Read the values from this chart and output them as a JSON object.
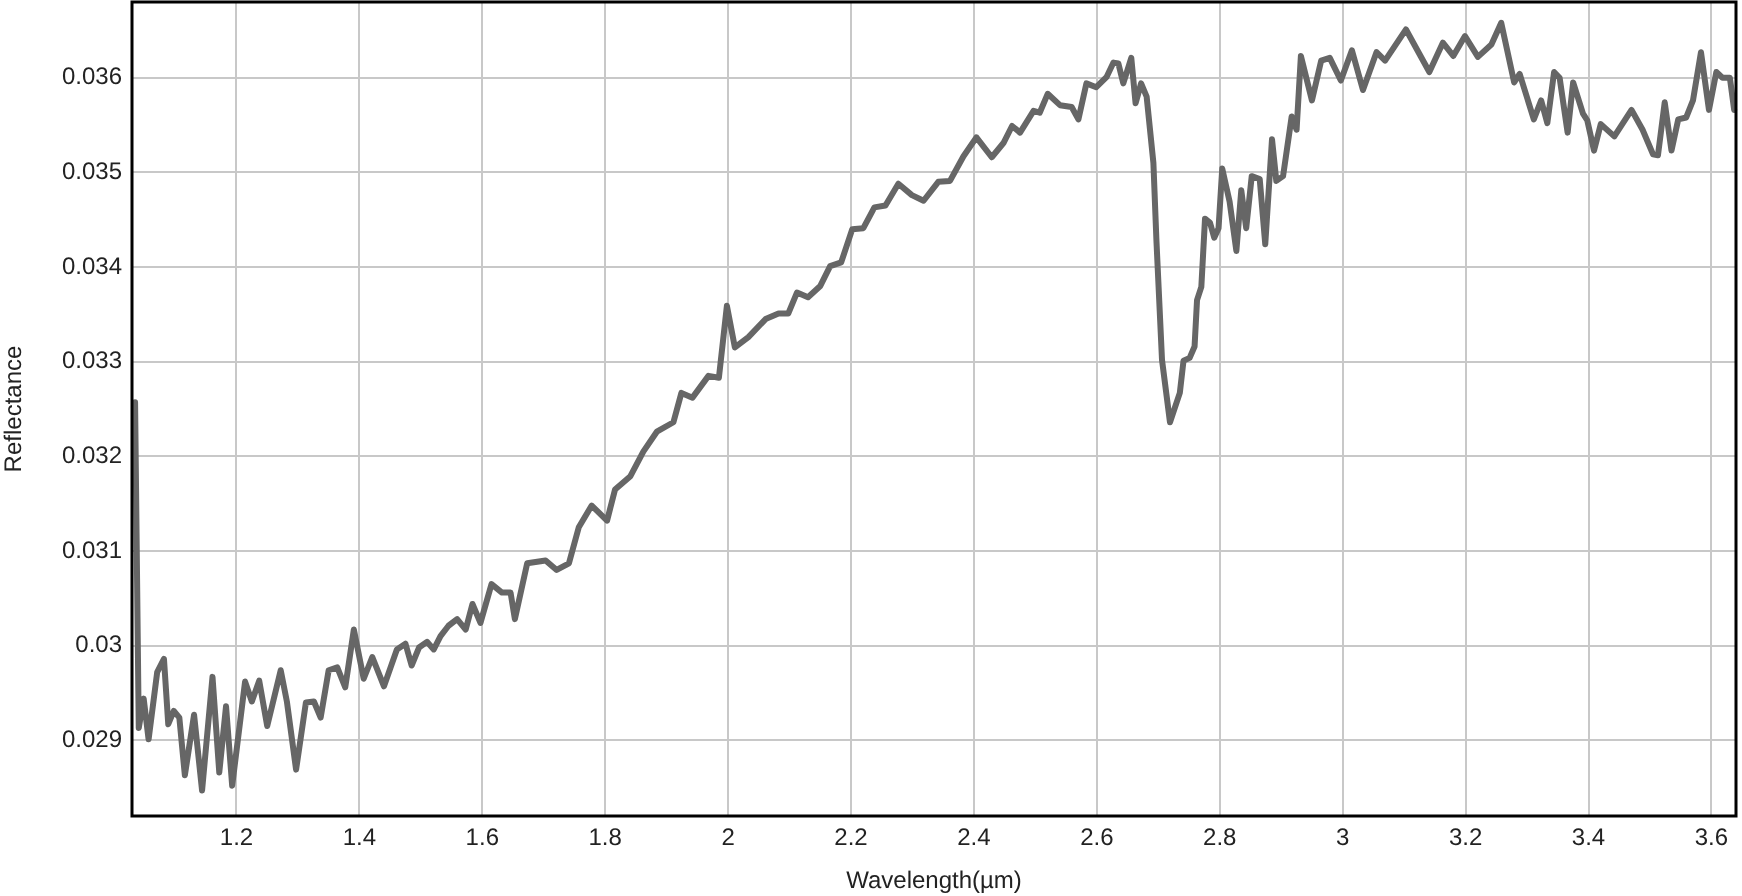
{
  "chart_data": {
    "type": "line",
    "xlabel": "Wavelength(µm)",
    "ylabel": "Reflectance",
    "xlim": [
      1.03,
      3.64
    ],
    "ylim": [
      0.0282,
      0.0368
    ],
    "xticks": [
      1.2,
      1.4,
      1.6,
      1.8,
      2,
      2.2,
      2.4,
      2.6,
      2.8,
      3,
      3.2,
      3.4,
      3.6
    ],
    "yticks": [
      0.029,
      0.03,
      0.031,
      0.032,
      0.033,
      0.034,
      0.035,
      0.036
    ],
    "grid": true,
    "legend": false,
    "marker": "none",
    "line_style": "solid",
    "series": [
      {
        "color": "#666666",
        "x": [
          1.035,
          1.041,
          1.049,
          1.057,
          1.071,
          1.082,
          1.089,
          1.098,
          1.107,
          1.116,
          1.131,
          1.144,
          1.161,
          1.172,
          1.183,
          1.193,
          1.214,
          1.225,
          1.237,
          1.25,
          1.272,
          1.282,
          1.297,
          1.313,
          1.326,
          1.337,
          1.35,
          1.364,
          1.377,
          1.391,
          1.407,
          1.421,
          1.44,
          1.461,
          1.475,
          1.485,
          1.497,
          1.51,
          1.521,
          1.532,
          1.545,
          1.559,
          1.573,
          1.584,
          1.597,
          1.615,
          1.632,
          1.646,
          1.653,
          1.673,
          1.703,
          1.721,
          1.741,
          1.757,
          1.778,
          1.803,
          1.816,
          1.841,
          1.862,
          1.884,
          1.911,
          1.924,
          1.942,
          1.968,
          1.985,
          1.998,
          2.011,
          2.033,
          2.061,
          2.082,
          2.098,
          2.112,
          2.13,
          2.15,
          2.166,
          2.184,
          2.202,
          2.22,
          2.238,
          2.256,
          2.277,
          2.299,
          2.318,
          2.342,
          2.361,
          2.383,
          2.404,
          2.429,
          2.448,
          2.462,
          2.475,
          2.497,
          2.507,
          2.52,
          2.54,
          2.559,
          2.57,
          2.583,
          2.599,
          2.616,
          2.627,
          2.635,
          2.643,
          2.656,
          2.663,
          2.672,
          2.681,
          2.692,
          2.697,
          2.706,
          2.719,
          2.735,
          2.741,
          2.751,
          2.759,
          2.763,
          2.77,
          2.776,
          2.784,
          2.791,
          2.798,
          2.804,
          2.816,
          2.827,
          2.835,
          2.843,
          2.852,
          2.865,
          2.874,
          2.885,
          2.892,
          2.903,
          2.917,
          2.925,
          2.932,
          2.95,
          2.965,
          2.979,
          2.997,
          3.015,
          3.033,
          3.055,
          3.069,
          3.103,
          3.141,
          3.163,
          3.18,
          3.199,
          3.22,
          3.242,
          3.258,
          3.279,
          3.288,
          3.311,
          3.323,
          3.333,
          3.344,
          3.353,
          3.366,
          3.375,
          3.391,
          3.398,
          3.409,
          3.42,
          3.442,
          3.47,
          3.488,
          3.505,
          3.513,
          3.524,
          3.535,
          3.546,
          3.559,
          3.57,
          3.583,
          3.596,
          3.608,
          3.618,
          3.63,
          3.637
        ],
        "values": [
          0.03257,
          0.02913,
          0.02944,
          0.02901,
          0.02972,
          0.02986,
          0.02917,
          0.02931,
          0.02924,
          0.02863,
          0.02927,
          0.02847,
          0.02967,
          0.02866,
          0.02936,
          0.02852,
          0.02962,
          0.02941,
          0.02963,
          0.02915,
          0.02974,
          0.02941,
          0.02869,
          0.0294,
          0.02941,
          0.02924,
          0.02974,
          0.02977,
          0.02956,
          0.03017,
          0.02965,
          0.02988,
          0.02957,
          0.02996,
          0.03002,
          0.02979,
          0.02998,
          0.03004,
          0.02996,
          0.0301,
          0.03021,
          0.03028,
          0.03017,
          0.03044,
          0.03024,
          0.03065,
          0.03056,
          0.03056,
          0.03028,
          0.03087,
          0.0309,
          0.0308,
          0.03087,
          0.03125,
          0.03148,
          0.03132,
          0.03165,
          0.03179,
          0.03205,
          0.03226,
          0.03236,
          0.03267,
          0.03262,
          0.03285,
          0.03283,
          0.03359,
          0.03315,
          0.03326,
          0.03345,
          0.03351,
          0.03351,
          0.03373,
          0.03368,
          0.0338,
          0.03401,
          0.03405,
          0.0344,
          0.03441,
          0.03463,
          0.03465,
          0.03488,
          0.03476,
          0.0347,
          0.0349,
          0.03491,
          0.03517,
          0.03537,
          0.03516,
          0.03531,
          0.03549,
          0.03542,
          0.03565,
          0.03563,
          0.03583,
          0.03571,
          0.03569,
          0.03556,
          0.03594,
          0.0359,
          0.03601,
          0.03616,
          0.03615,
          0.03594,
          0.03621,
          0.03573,
          0.03594,
          0.0358,
          0.0351,
          0.03427,
          0.03302,
          0.03236,
          0.03267,
          0.03301,
          0.03304,
          0.03316,
          0.03365,
          0.03379,
          0.03451,
          0.03447,
          0.03431,
          0.03441,
          0.03504,
          0.03469,
          0.03417,
          0.03481,
          0.03441,
          0.03496,
          0.03493,
          0.03424,
          0.03535,
          0.03491,
          0.03496,
          0.03559,
          0.03545,
          0.03623,
          0.03576,
          0.03618,
          0.03621,
          0.03597,
          0.03629,
          0.03587,
          0.03627,
          0.03618,
          0.03651,
          0.03606,
          0.03637,
          0.03623,
          0.03644,
          0.03622,
          0.03635,
          0.03658,
          0.03595,
          0.03604,
          0.03556,
          0.03576,
          0.03552,
          0.03606,
          0.036,
          0.03542,
          0.03595,
          0.03562,
          0.03555,
          0.03523,
          0.03551,
          0.03538,
          0.03566,
          0.03545,
          0.03519,
          0.03518,
          0.03574,
          0.03523,
          0.03556,
          0.03558,
          0.03576,
          0.03627,
          0.03566,
          0.03606,
          0.036,
          0.036,
          0.03566
        ]
      }
    ]
  }
}
